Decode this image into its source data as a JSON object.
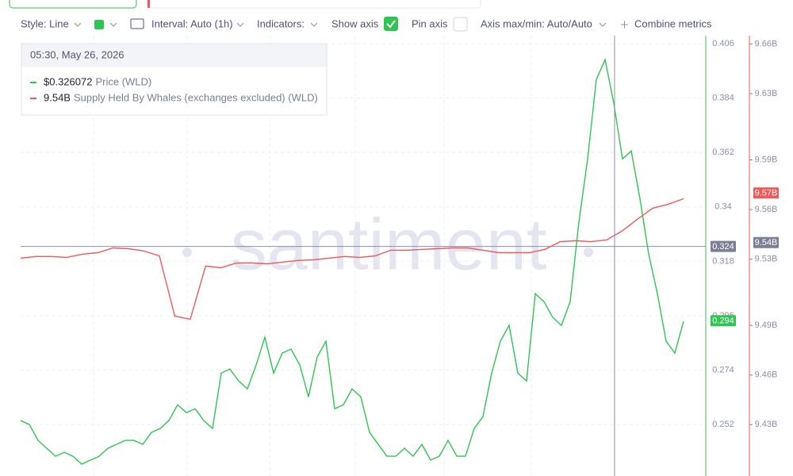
{
  "toolbar": {
    "style": "Style: Line",
    "interval": "Interval: Auto (1h)",
    "indicators": "Indicators:",
    "show_axis": "Show axis",
    "pin_axis": "Pin axis",
    "axis_maxmin": "Axis max/min: Auto/Auto",
    "combine": "Combine metrics"
  },
  "tooltip": {
    "date": "05:30, May 26, 2026",
    "rows": [
      {
        "value": "$0.326072",
        "name": "Price (WLD)"
      },
      {
        "value": "9.54B",
        "name": "Supply Held By Whales (exchanges excluded) (WLD)"
      }
    ]
  },
  "watermark": "santiment",
  "chart_data": {
    "type": "line",
    "ylim": [
      0.2312,
      0.4092
    ],
    "yticks": [
      0.406,
      0.384,
      0.362,
      0.34,
      0.318,
      0.296,
      0.274,
      0.252
    ],
    "y2lim": [
      9.399,
      9.665
    ],
    "y2ticks": [
      {
        "value": 9.66,
        "label": "9.66B"
      },
      {
        "value": 9.63,
        "label": "9.63B"
      },
      {
        "value": 9.59,
        "label": "9.59B"
      },
      {
        "value": 9.56,
        "label": "9.56B"
      },
      {
        "value": 9.53,
        "label": "9.53B"
      },
      {
        "value": 9.49,
        "label": "9.49B"
      },
      {
        "value": 9.46,
        "label": "9.46B"
      },
      {
        "value": 9.43,
        "label": "9.43B"
      }
    ],
    "grid": true,
    "crosshair": {
      "y": 0.324,
      "y2": {
        "value": 9.54,
        "label": "9.54B"
      }
    },
    "last_badges": {
      "y": 0.294,
      "y2": {
        "value": 9.57,
        "label": "9.57B"
      }
    },
    "series": [
      {
        "name": "Price (WLD)",
        "color": "#2fc553",
        "axis": "y",
        "values": [
          0.2536,
          0.252,
          0.2456,
          0.2424,
          0.2392,
          0.2408,
          0.2392,
          0.236,
          0.2376,
          0.2392,
          0.2424,
          0.244,
          0.2456,
          0.2456,
          0.244,
          0.2488,
          0.2504,
          0.2536,
          0.26,
          0.2568,
          0.2584,
          0.2536,
          0.2504,
          0.2728,
          0.2744,
          0.2696,
          0.2664,
          0.2761,
          0.2873,
          0.2728,
          0.2809,
          0.2825,
          0.2761,
          0.2632,
          0.2793,
          0.2857,
          0.2584,
          0.26,
          0.2664,
          0.2632,
          0.2488,
          0.244,
          0.2392,
          0.2392,
          0.2424,
          0.2392,
          0.244,
          0.2376,
          0.2392,
          0.2456,
          0.2392,
          0.2392,
          0.2504,
          0.2552,
          0.2728,
          0.2857,
          0.2921,
          0.2728,
          0.2696,
          0.3049,
          0.3017,
          0.2953,
          0.2921,
          0.3017,
          0.3338,
          0.3594,
          0.3915,
          0.3995,
          0.3819,
          0.3594,
          0.3626,
          0.3434,
          0.3209,
          0.3049,
          0.2857,
          0.2809,
          0.2937
        ]
      },
      {
        "name": "Supply Held By Whales (exchanges excluded) (WLD)",
        "color": "#f0595a",
        "axis": "y2",
        "values": [
          9.5306,
          9.5316,
          9.5316,
          9.5311,
          9.533,
          9.5339,
          9.5368,
          9.5363,
          9.5349,
          9.532,
          9.4956,
          9.4937,
          9.5258,
          9.5248,
          9.5277,
          9.5277,
          9.5272,
          9.5282,
          9.5292,
          9.5296,
          9.5306,
          9.5316,
          9.5311,
          9.532,
          9.5354,
          9.5354,
          9.5359,
          9.5363,
          9.5368,
          9.5368,
          9.5354,
          9.5339,
          9.5339,
          9.5339,
          9.5359,
          9.5406,
          9.5411,
          9.5406,
          9.5416,
          9.5469,
          9.5541,
          9.5608,
          9.5632,
          9.5665
        ]
      }
    ]
  }
}
